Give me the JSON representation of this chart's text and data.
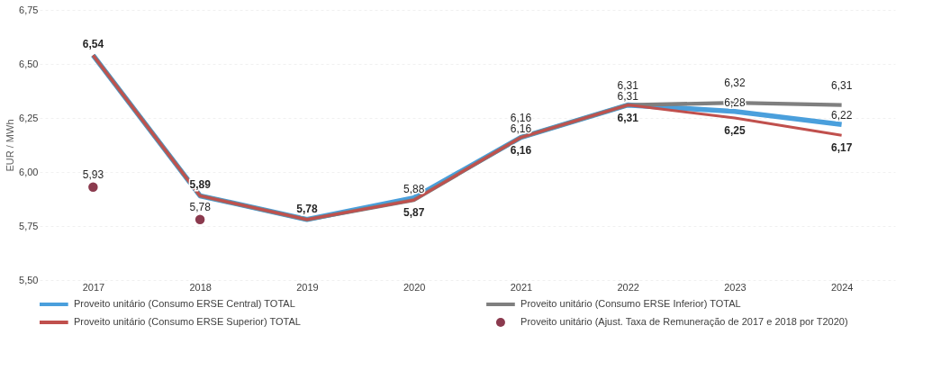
{
  "chart_data": {
    "type": "line",
    "ylabel": "EUR / MWh",
    "categories": [
      "2017",
      "2018",
      "2019",
      "2020",
      "2021",
      "2022",
      "2023",
      "2024"
    ],
    "series": [
      {
        "name": "Proveito unitário (Consumo ERSE Central) TOTAL",
        "color": "#4a9fdc",
        "values": [
          6.54,
          5.89,
          5.78,
          5.88,
          6.16,
          6.31,
          6.28,
          6.22
        ],
        "value_labels": [
          null,
          null,
          null,
          "5,88",
          "6,16",
          "6,31",
          "6,28",
          "6,22"
        ]
      },
      {
        "name": "Proveito unitário (Consumo ERSE Inferior) TOTAL",
        "color": "#7f7f7f",
        "values": [
          6.54,
          5.89,
          5.78,
          5.87,
          6.16,
          6.31,
          6.32,
          6.31
        ],
        "value_labels": [
          null,
          null,
          null,
          null,
          "6,16",
          "6,31",
          "6,32",
          "6,31"
        ]
      },
      {
        "name": "Proveito unitário (Consumo ERSE Superior) TOTAL",
        "color": "#c0504d",
        "values": [
          6.54,
          5.89,
          5.78,
          5.87,
          6.16,
          6.31,
          6.25,
          6.17
        ],
        "value_labels": [
          "6,54",
          "5,89",
          "5,78",
          "5,87",
          "6,16",
          "6,31",
          "6,25",
          "6,17"
        ]
      },
      {
        "name": "Proveito unitário (Ajust. Taxa de Remuneração de 2017 e 2018 por T2020)",
        "type": "scatter",
        "marker": "circle",
        "color": "#8b3a4e",
        "values": [
          5.93,
          5.78,
          null,
          null,
          null,
          null,
          null,
          null
        ],
        "value_labels": [
          "5,93",
          "5,78",
          null,
          null,
          null,
          null,
          null,
          null
        ]
      }
    ],
    "ylim": [
      5.5,
      6.75
    ],
    "yticks": [
      {
        "value": 5.5,
        "label": "5,50"
      },
      {
        "value": 5.75,
        "label": "5,75"
      },
      {
        "value": 6.0,
        "label": "6,00"
      },
      {
        "value": 6.25,
        "label": "6,25"
      },
      {
        "value": 6.5,
        "label": "6,50"
      },
      {
        "value": 6.75,
        "label": "6,75"
      }
    ],
    "grid": "y",
    "legend": "bottom",
    "marker": "none",
    "line_style": "solid"
  }
}
